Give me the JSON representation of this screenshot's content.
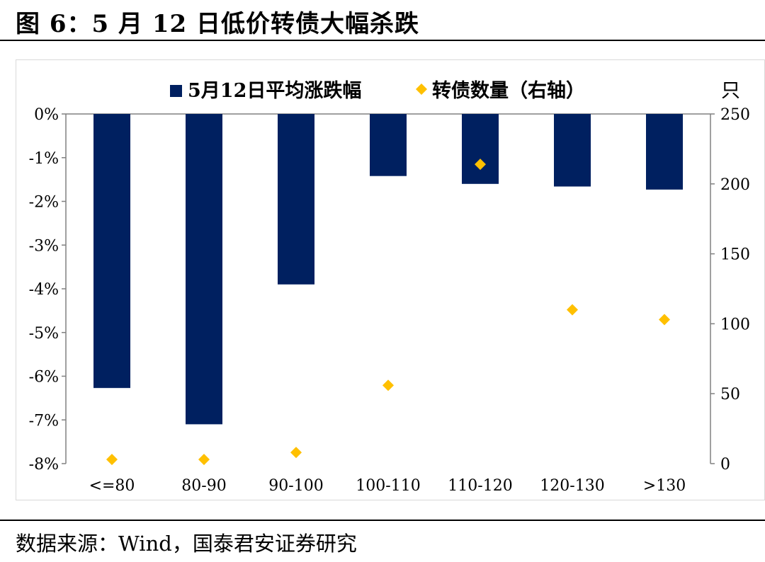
{
  "figure": {
    "title": "图 6：5 月 12 日低价转债大幅杀跌",
    "source": "数据来源：Wind，国泰君安证券研究"
  },
  "chart_data": {
    "type": "bar",
    "categories": [
      "<=80",
      "80-90",
      "90-100",
      "100-110",
      "110-120",
      "120-130",
      ">130"
    ],
    "series": [
      {
        "name": "5月12日平均涨跌幅",
        "type": "bar",
        "axis": "left",
        "color": "#002060",
        "values": [
          -6.27,
          -7.1,
          -3.9,
          -1.42,
          -1.6,
          -1.66,
          -1.73
        ]
      },
      {
        "name": "转债数量（右轴）",
        "type": "scatter",
        "axis": "right",
        "marker": "diamond",
        "color": "#FFC000",
        "values": [
          3,
          3,
          8,
          56,
          214,
          110,
          103
        ]
      }
    ],
    "y_left": {
      "min": -8,
      "max": 0,
      "step": 1,
      "ticks": [
        "0%",
        "-1%",
        "-2%",
        "-3%",
        "-4%",
        "-5%",
        "-6%",
        "-7%",
        "-8%"
      ]
    },
    "y_right": {
      "min": 0,
      "max": 250,
      "step": 50,
      "unit_label": "只",
      "ticks": [
        "250",
        "200",
        "150",
        "100",
        "50",
        "0"
      ]
    },
    "legend_position": "top",
    "grid": false
  }
}
